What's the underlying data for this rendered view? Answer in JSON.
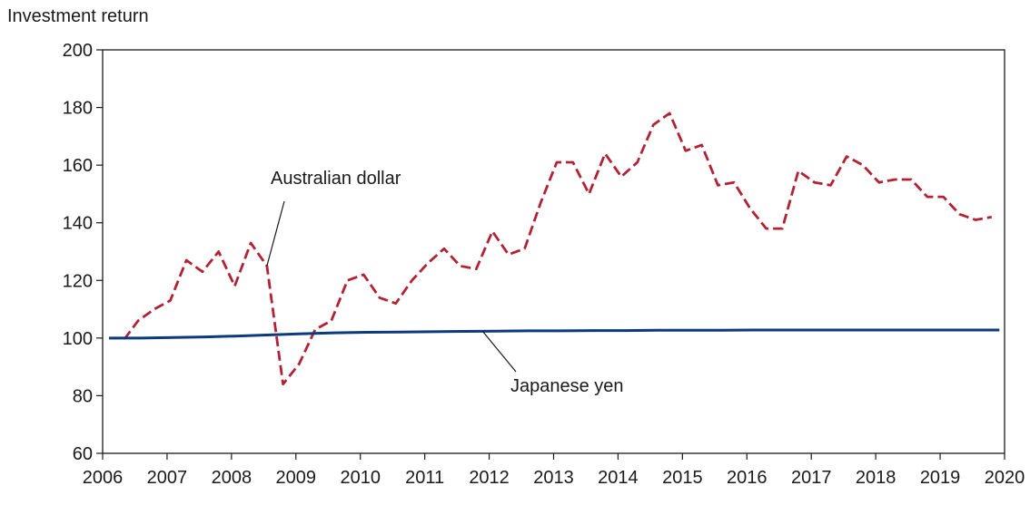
{
  "chart_data": {
    "type": "line",
    "ylabel": "Investment return",
    "xlim": [
      2006,
      2020
    ],
    "ylim": [
      60,
      200
    ],
    "x_ticks": [
      "2006",
      "2007",
      "2008",
      "2009",
      "2010",
      "2011",
      "2012",
      "2013",
      "2014",
      "2015",
      "2016",
      "2017",
      "2018",
      "2019",
      "2020"
    ],
    "y_ticks": [
      "60",
      "80",
      "100",
      "120",
      "140",
      "160",
      "180",
      "200"
    ],
    "grid": false,
    "series": [
      {
        "name": "Australian dollar",
        "color": "#b22234",
        "style": "dashed",
        "x": [
          2006.1,
          2006.35,
          2006.55,
          2006.8,
          2007.05,
          2007.3,
          2007.55,
          2007.8,
          2008.05,
          2008.3,
          2008.55,
          2008.8,
          2009.05,
          2009.3,
          2009.55,
          2009.8,
          2010.05,
          2010.3,
          2010.55,
          2010.8,
          2011.05,
          2011.3,
          2011.55,
          2011.8,
          2012.05,
          2012.3,
          2012.55,
          2012.8,
          2013.05,
          2013.3,
          2013.55,
          2013.8,
          2014.05,
          2014.3,
          2014.55,
          2014.8,
          2015.05,
          2015.3,
          2015.55,
          2015.8,
          2016.05,
          2016.3,
          2016.55,
          2016.8,
          2017.05,
          2017.3,
          2017.55,
          2017.8,
          2018.05,
          2018.3,
          2018.55,
          2018.8,
          2019.05,
          2019.3,
          2019.55,
          2019.8
        ],
        "values": [
          100,
          100,
          106,
          110,
          113,
          127,
          123,
          130,
          118,
          133,
          125,
          84,
          91,
          103,
          106,
          120,
          122,
          114,
          112,
          120,
          126,
          131,
          125,
          124,
          137,
          129,
          131,
          147,
          161,
          161,
          150,
          164,
          156,
          161,
          174,
          178,
          165,
          167,
          153,
          154,
          145,
          138,
          138,
          158,
          154,
          153,
          163,
          160,
          154,
          155,
          155,
          149,
          149,
          143,
          141,
          142
        ]
      },
      {
        "name": "Japanese yen",
        "color": "#0b3a7e",
        "style": "solid",
        "x": [
          2006.1,
          2006.6,
          2007.1,
          2007.6,
          2008.1,
          2008.6,
          2009.1,
          2009.6,
          2010.1,
          2010.6,
          2011.1,
          2011.6,
          2012.1,
          2012.6,
          2013.1,
          2013.6,
          2014.1,
          2014.6,
          2015.1,
          2015.6,
          2016.1,
          2016.6,
          2017.1,
          2017.6,
          2018.1,
          2018.6,
          2019.1,
          2019.6,
          2019.92
        ],
        "values": [
          100,
          100,
          100.2,
          100.4,
          100.7,
          101.1,
          101.5,
          101.8,
          102.0,
          102.1,
          102.2,
          102.3,
          102.4,
          102.5,
          102.5,
          102.6,
          102.6,
          102.7,
          102.7,
          102.7,
          102.8,
          102.8,
          102.8,
          102.8,
          102.8,
          102.8,
          102.8,
          102.8,
          102.8
        ]
      }
    ],
    "annotations": [
      {
        "text": "Australian dollar",
        "series": "Australian dollar",
        "point_x": 2008.55,
        "point_y": 125
      },
      {
        "text": "Japanese yen",
        "series": "Japanese yen",
        "point_x": 2011.9,
        "point_y": 102.3
      }
    ]
  }
}
